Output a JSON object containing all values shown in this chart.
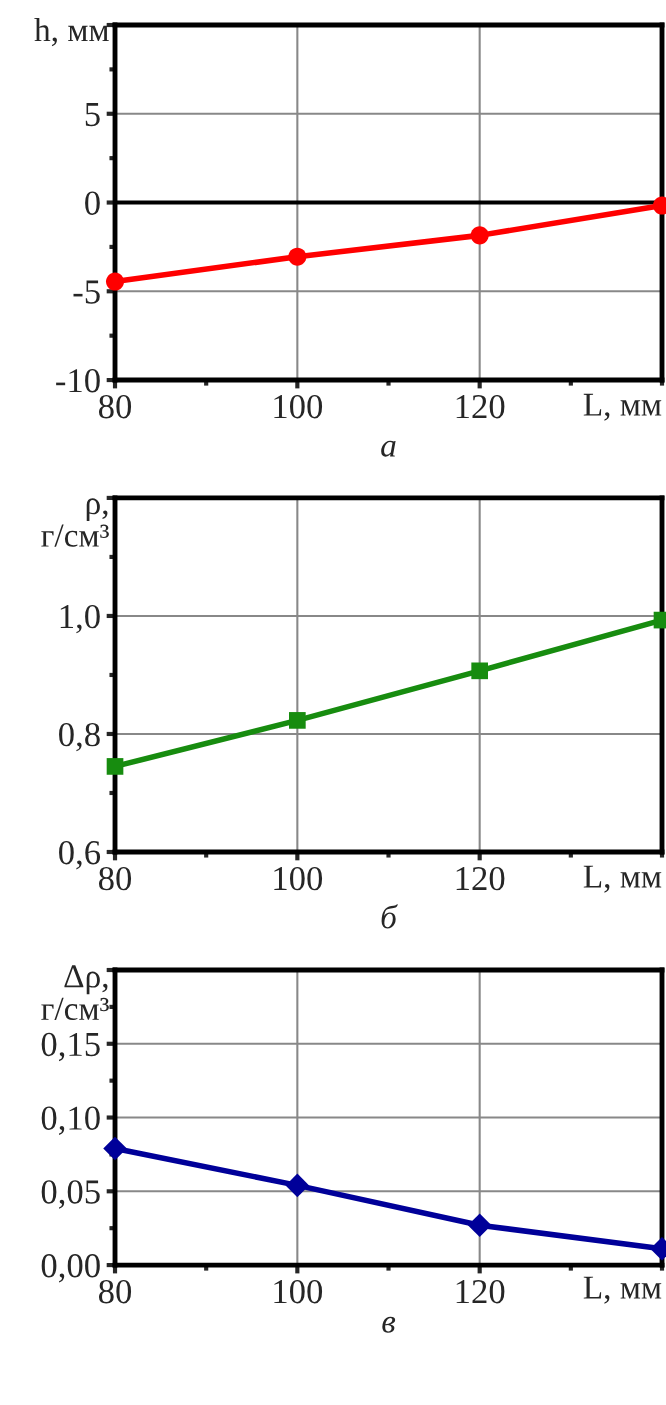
{
  "chart_data": [
    {
      "type": "line",
      "ylabel": "h, мм",
      "xlabel": "L, мм",
      "annotations": [
        "а"
      ],
      "x": [
        80,
        100,
        120,
        140
      ],
      "series": [
        {
          "color": "#ff0000",
          "values": [
            -4.45,
            -3.05,
            -1.85,
            -0.17
          ]
        }
      ],
      "marker": "circle",
      "line_style": "solid",
      "grid": true,
      "xlim": [
        80,
        140
      ],
      "xticks": [
        80,
        100,
        120
      ],
      "ylim": [
        -10,
        10
      ],
      "yticks": [
        {
          "value": -10,
          "label": "-10"
        },
        {
          "value": -5,
          "label": "-5"
        },
        0,
        5,
        {
          "value": 10,
          "label": null
        }
      ],
      "ref_lines": [
        {
          "axis": "y",
          "value": 0,
          "label": null,
          "color": "#000000"
        }
      ]
    },
    {
      "type": "line",
      "ylabel": "ρ,\nг/см³",
      "xlabel": "L, мм",
      "annotations": [
        "б"
      ],
      "x": [
        80,
        100,
        120,
        140
      ],
      "series": [
        {
          "color": "#178c0f",
          "values": [
            0.745,
            0.823,
            0.907,
            0.993
          ]
        }
      ],
      "marker": "square",
      "line_style": "solid",
      "grid": true,
      "xlim": [
        80,
        140
      ],
      "xticks": [
        80,
        100,
        120
      ],
      "ylim": [
        0.6,
        1.2
      ],
      "yticks": [
        {
          "value": 0.6,
          "label": "0,6"
        },
        {
          "value": 0.8,
          "label": "0,8"
        },
        {
          "value": 1.0,
          "label": "1,0"
        },
        {
          "value": 1.2,
          "label": null
        }
      ]
    },
    {
      "type": "line",
      "ylabel": "Δρ,\nг/см³",
      "xlabel": "L, мм",
      "annotations": [
        "в"
      ],
      "x": [
        80,
        100,
        120,
        140
      ],
      "series": [
        {
          "color": "#000099",
          "values": [
            0.079,
            0.054,
            0.027,
            0.011
          ]
        }
      ],
      "marker": "diamond",
      "line_style": "solid",
      "grid": true,
      "xlim": [
        80,
        140
      ],
      "xticks": [
        80,
        100,
        120
      ],
      "ylim": [
        0,
        0.2
      ],
      "yticks": [
        {
          "value": 0,
          "label": "0,00"
        },
        {
          "value": 0.05,
          "label": "0,05"
        },
        {
          "value": 0.1,
          "label": "0,10"
        },
        {
          "value": 0.15,
          "label": "0,15"
        },
        {
          "value": 0.2,
          "label": null
        }
      ]
    }
  ]
}
